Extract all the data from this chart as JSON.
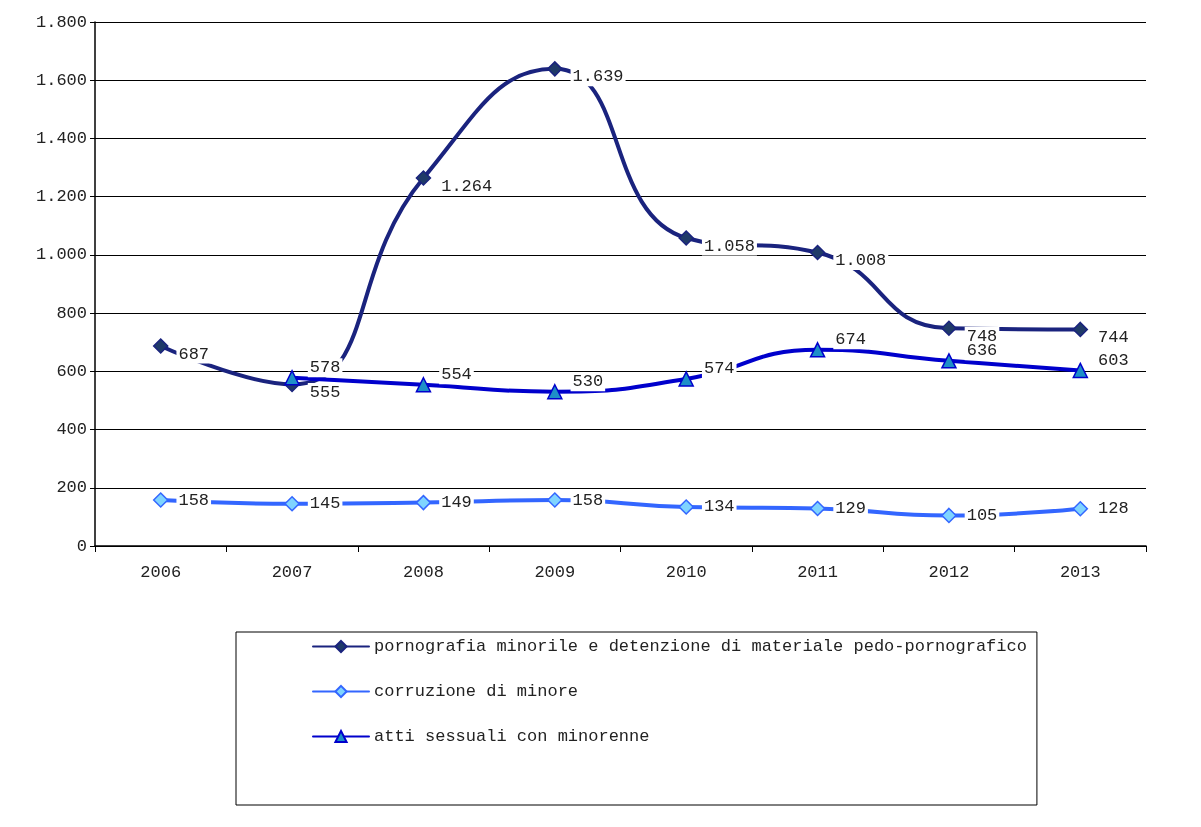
{
  "chart_data": {
    "type": "line",
    "categories": [
      "2006",
      "2007",
      "2008",
      "2009",
      "2010",
      "2011",
      "2012",
      "2013"
    ],
    "series": [
      {
        "name": "pornografia minorile e detenzione di materiale pedo-pornografico",
        "color": "#1a237e",
        "marker": "diamond",
        "values": [
          687,
          555,
          1264,
          1639,
          1058,
          1008,
          748,
          744
        ],
        "value_labels": [
          "687",
          "555",
          "1.264",
          "1.639",
          "1.058",
          "1.008",
          "748",
          "744"
        ]
      },
      {
        "name": "corruzione di minore",
        "color": "#3366ff",
        "marker": "diamond",
        "values": [
          158,
          145,
          149,
          158,
          134,
          129,
          105,
          128
        ],
        "value_labels": [
          "158",
          "145",
          "149",
          "158",
          "134",
          "129",
          "105",
          "128"
        ]
      },
      {
        "name": "atti sessuali con minorenne",
        "color": "#0000cc",
        "marker": "triangle",
        "values": [
          null,
          578,
          554,
          530,
          574,
          674,
          636,
          603
        ],
        "value_labels": [
          null,
          "578",
          "554",
          "530",
          "574",
          "674",
          "636",
          "603"
        ]
      }
    ],
    "ylim": [
      0,
      1800
    ],
    "yticks": [
      0,
      200,
      400,
      600,
      800,
      {
        "value": 1000,
        "label": "1.000"
      },
      {
        "value": 1200,
        "label": "1.200"
      },
      {
        "value": 1400,
        "label": "1.400"
      },
      {
        "value": 1600,
        "label": "1.600"
      },
      {
        "value": 1800,
        "label": "1.800"
      }
    ],
    "grid": "y",
    "legend": "bottom",
    "line_style": "solid"
  }
}
